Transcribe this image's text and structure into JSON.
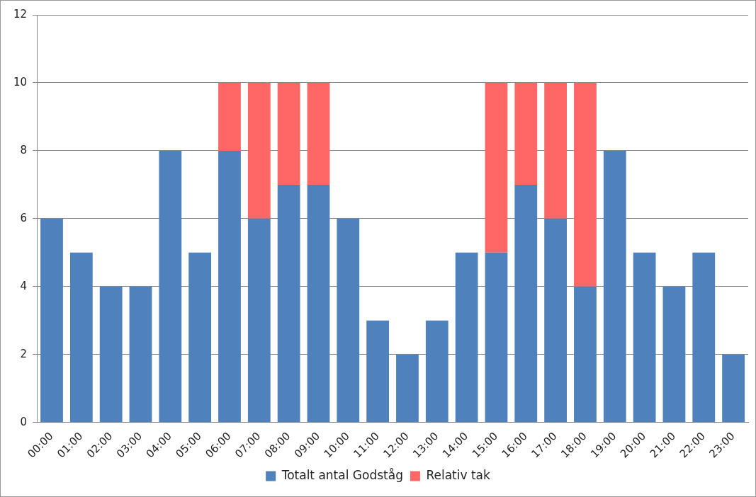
{
  "chart_data": {
    "type": "bar",
    "stacked": true,
    "categories": [
      "00:00",
      "01:00",
      "02:00",
      "03:00",
      "04:00",
      "05:00",
      "06:00",
      "07:00",
      "08:00",
      "09:00",
      "10:00",
      "11:00",
      "12:00",
      "13:00",
      "14:00",
      "15:00",
      "16:00",
      "17:00",
      "18:00",
      "19:00",
      "20:00",
      "21:00",
      "22:00",
      "23:00"
    ],
    "series": [
      {
        "name": "Totalt antal Godståg",
        "color": "#4f81bd",
        "values": [
          6,
          5,
          4,
          4,
          8,
          5,
          8,
          6,
          7,
          7,
          6,
          3,
          2,
          3,
          5,
          5,
          7,
          6,
          4,
          8,
          5,
          4,
          5,
          2
        ]
      },
      {
        "name": "Relativ tak",
        "color": "#ff6666",
        "values": [
          null,
          null,
          null,
          null,
          null,
          null,
          2,
          4,
          3,
          3,
          null,
          null,
          null,
          null,
          null,
          5,
          3,
          4,
          6,
          null,
          null,
          null,
          null,
          null
        ]
      }
    ],
    "ylim": [
      0,
      12
    ],
    "yticks": [
      0,
      2,
      4,
      6,
      8,
      10,
      12
    ],
    "grid": "y",
    "legend": "bottom"
  }
}
